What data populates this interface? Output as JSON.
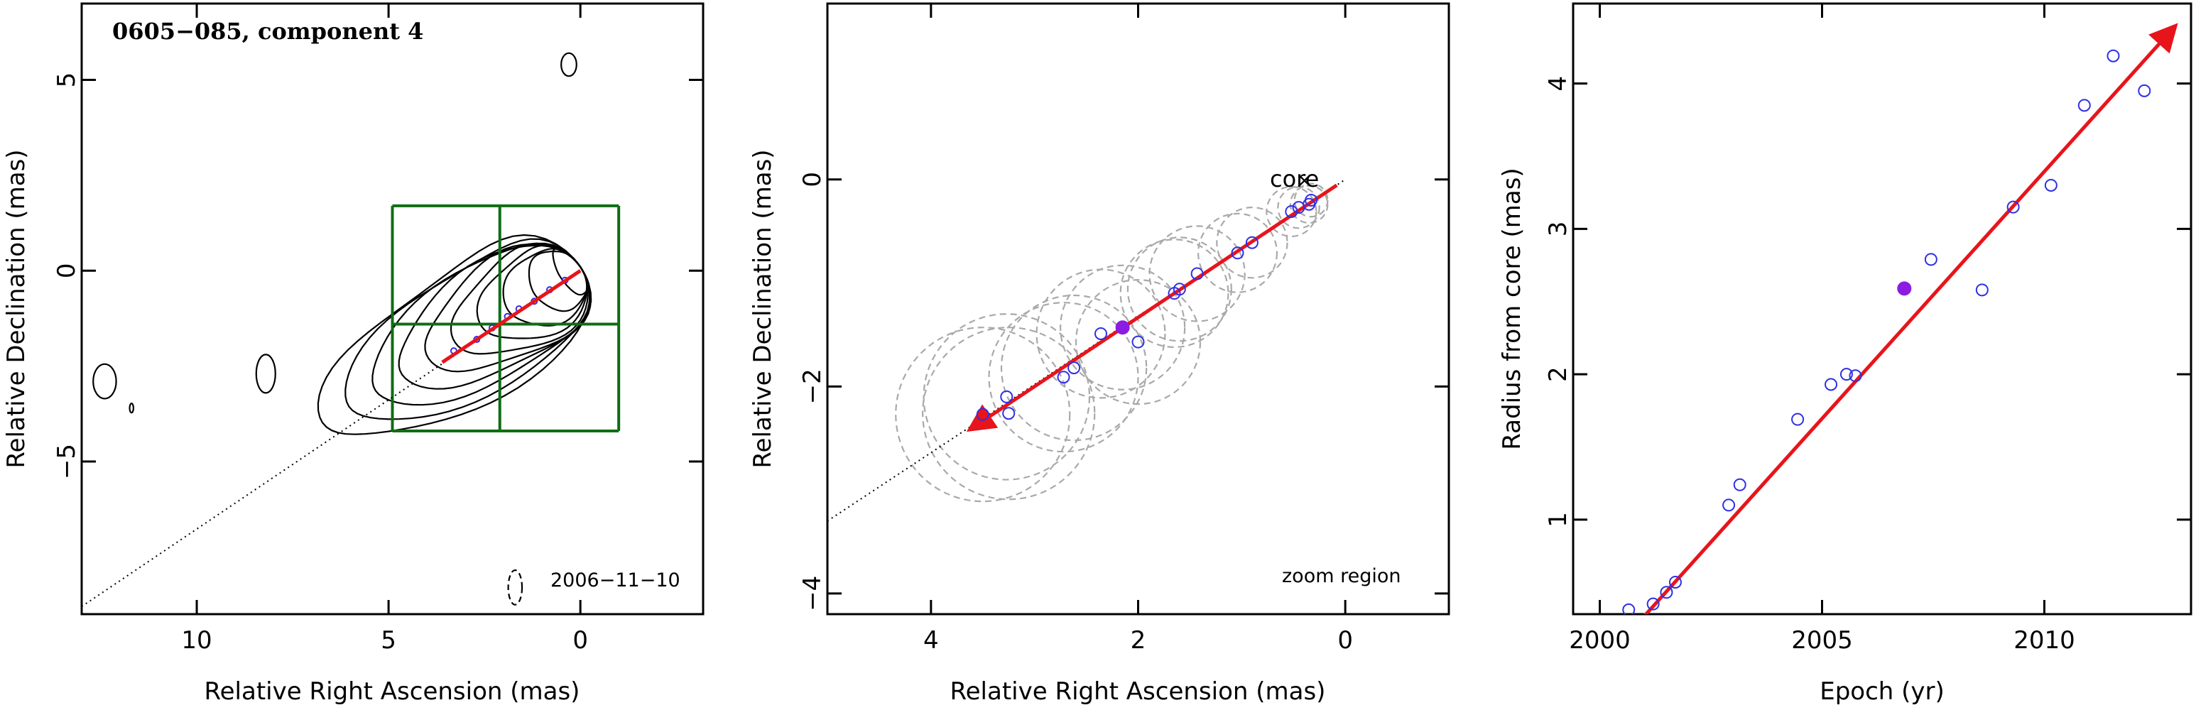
{
  "chart_data": [
    {
      "type": "contour",
      "title": "0605−085, component 4",
      "date_label": "2006−11−10",
      "xlabel": "Relative Right Ascension (mas)",
      "ylabel": "Relative Declination (mas)",
      "xlim": [
        13,
        -3.2
      ],
      "ylim": [
        -9,
        7
      ],
      "xticks": [
        10,
        5,
        0
      ],
      "yticks": [
        5,
        0,
        -5
      ],
      "xtick_labels": [
        "10",
        "5",
        "0"
      ],
      "ytick_labels": [
        "5",
        "0",
        "−5"
      ],
      "grid_box": {
        "x": [
          4.9,
          2.1,
          -1.0
        ],
        "y": [
          1.7,
          -1.4,
          -4.2
        ]
      },
      "core": {
        "x": 0.0,
        "y": 0.1
      },
      "vector": {
        "from": [
          0.0,
          0.0
        ],
        "to": [
          3.6,
          -2.4
        ]
      },
      "trajectory_points": [
        {
          "x": 3.3,
          "y": -2.1
        },
        {
          "x": 2.7,
          "y": -1.8
        },
        {
          "x": 2.3,
          "y": -1.5
        },
        {
          "x": 1.9,
          "y": -1.2
        },
        {
          "x": 1.6,
          "y": -1.0
        },
        {
          "x": 1.2,
          "y": -0.8
        },
        {
          "x": 0.8,
          "y": -0.5
        },
        {
          "x": 0.4,
          "y": -0.25
        }
      ],
      "dotted_line": {
        "from": [
          13,
          -8.8
        ],
        "to": [
          0.0,
          0.0
        ]
      },
      "colors": {
        "vector": "#e8141b",
        "grid": "#0d6e13",
        "points": "#2f2fe6",
        "contour": "#000000"
      }
    },
    {
      "type": "scatter",
      "label": "zoom region",
      "core_label": "core",
      "xlabel": "Relative Right Ascension (mas)",
      "ylabel": "Relative Declination (mas)",
      "xlim": [
        5,
        -1
      ],
      "ylim": [
        -4.2,
        1.7
      ],
      "xticks": [
        4,
        2,
        0
      ],
      "yticks": [
        0,
        -2,
        -4
      ],
      "xtick_labels": [
        "4",
        "2",
        "0"
      ],
      "ytick_labels": [
        "0",
        "−2",
        "−4"
      ],
      "core": {
        "x": 0.0,
        "y": 0.0
      },
      "vector": {
        "from": [
          0.0,
          0.0
        ],
        "to": [
          3.6,
          -2.4
        ]
      },
      "dotted_line": {
        "from": [
          5,
          -3.3
        ],
        "to": [
          0.0,
          0.0
        ]
      },
      "points": [
        {
          "x": 3.5,
          "y": -2.27,
          "r": 0.84
        },
        {
          "x": 3.27,
          "y": -2.1,
          "r": 0.8
        },
        {
          "x": 3.25,
          "y": -2.26,
          "r": 0.83
        },
        {
          "x": 2.72,
          "y": -1.91,
          "r": 0.72
        },
        {
          "x": 2.62,
          "y": -1.82,
          "r": 0.7
        },
        {
          "x": 2.36,
          "y": -1.49,
          "r": 0.62
        },
        {
          "x": 2.0,
          "y": -1.57,
          "r": 0.6
        },
        {
          "x": 1.65,
          "y": -1.1,
          "r": 0.52
        },
        {
          "x": 1.6,
          "y": -1.06,
          "r": 0.5
        },
        {
          "x": 1.43,
          "y": -0.91,
          "r": 0.46
        },
        {
          "x": 1.04,
          "y": -0.71,
          "r": 0.38
        },
        {
          "x": 0.9,
          "y": -0.61,
          "r": 0.34
        },
        {
          "x": 0.52,
          "y": -0.31,
          "r": 0.24
        },
        {
          "x": 0.45,
          "y": -0.27,
          "r": 0.2
        },
        {
          "x": 0.35,
          "y": -0.24,
          "r": 0.18
        },
        {
          "x": 0.33,
          "y": -0.2,
          "r": 0.16
        }
      ],
      "highlight": {
        "x": 2.15,
        "y": -1.43,
        "r": 0.6
      },
      "colors": {
        "vector": "#e8141b",
        "points": "#2f2fe6",
        "highlight": "#8b1ce0",
        "circles": "#a9a9a9"
      }
    },
    {
      "type": "scatter",
      "xlabel": "Epoch (yr)",
      "ylabel": "Radius from core (mas)",
      "xlim": [
        1999.4,
        2013.3
      ],
      "ylim": [
        0.35,
        4.55
      ],
      "xticks": [
        2000,
        2005,
        2010
      ],
      "yticks": [
        1,
        2,
        3,
        4
      ],
      "xtick_labels": [
        "2000",
        "2005",
        "2010"
      ],
      "ytick_labels": [
        "1",
        "2",
        "3",
        "4"
      ],
      "x": [
        2000.65,
        2001.2,
        2001.5,
        2001.7,
        2002.9,
        2003.15,
        2004.45,
        2005.2,
        2005.55,
        2005.75,
        2007.45,
        2008.6,
        2009.3,
        2010.15,
        2010.9,
        2011.55,
        2012.25
      ],
      "y": [
        0.38,
        0.42,
        0.5,
        0.57,
        1.1,
        1.24,
        1.69,
        1.93,
        2.0,
        1.99,
        2.79,
        2.58,
        3.15,
        3.3,
        3.85,
        4.19,
        3.95
      ],
      "highlight": {
        "x": 2006.85,
        "y": 2.59
      },
      "fit_line": {
        "from": [
          2000.6,
          0.2
        ],
        "to": [
          2012.9,
          4.38
        ]
      },
      "colors": {
        "points": "#2f2fe6",
        "highlight": "#8b1ce0",
        "fit": "#e8141b"
      }
    }
  ]
}
